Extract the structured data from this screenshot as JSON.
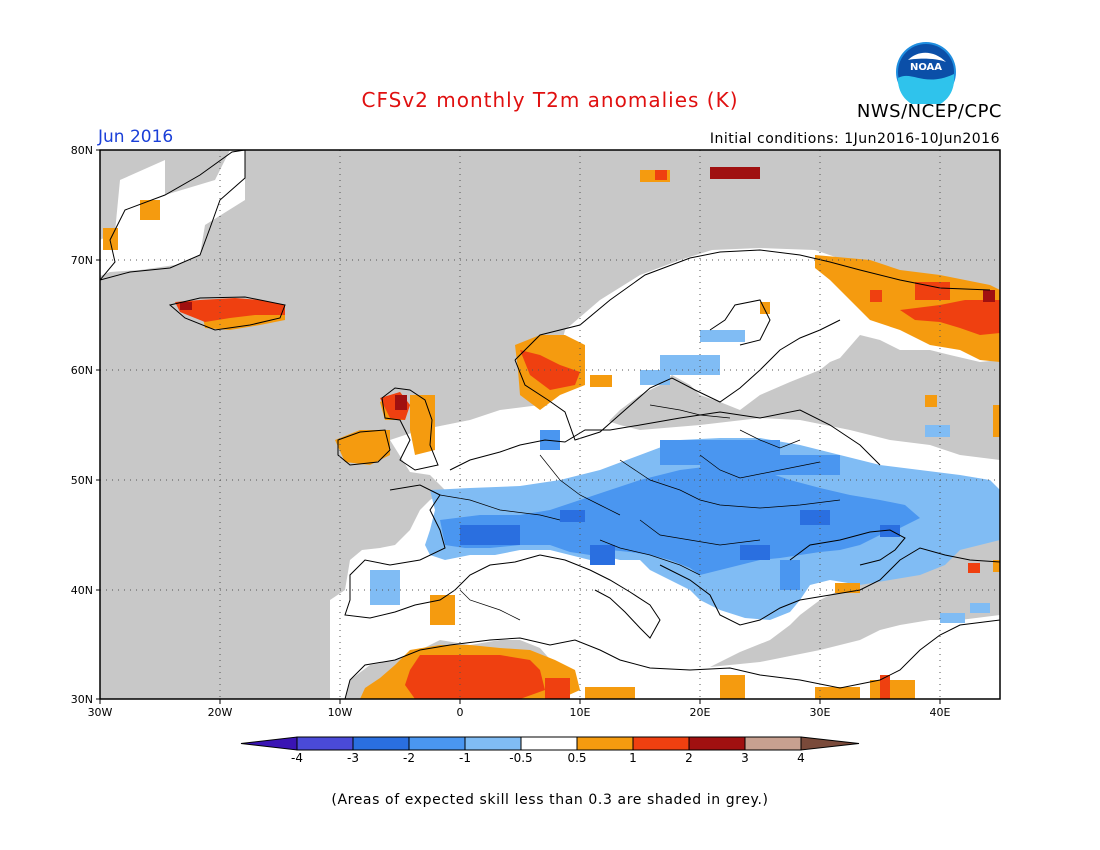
{
  "header": {
    "title": "CFSv2 monthly T2m anomalies (K)",
    "agency": "NWS/NCEP/CPC",
    "period": "Jun 2016",
    "initial_conditions": "Initial conditions: 1Jun2016-10Jun2016",
    "logo_icon": "noaa-logo-icon",
    "logo_text": "NOAA"
  },
  "map": {
    "region": "Europe",
    "lon_range": [
      -30,
      45
    ],
    "lat_range": [
      30,
      80
    ],
    "lat_ticks": [
      "80N",
      "70N",
      "60N",
      "50N",
      "40N",
      "30N"
    ],
    "lon_ticks": [
      "30W",
      "20W",
      "10W",
      "0",
      "10E",
      "20E",
      "30E",
      "40E"
    ],
    "grid": "dotted",
    "low_skill_color": "#c8c8c8"
  },
  "colorbar": {
    "labels": [
      "-4",
      "-3",
      "-2",
      "-1",
      "-0.5",
      "0.5",
      "1",
      "2",
      "3",
      "4"
    ],
    "colors": [
      "#3a14b4",
      "#4a4ad8",
      "#2a6fe0",
      "#4a96f0",
      "#80bcf4",
      "#ffffff",
      "#f59b0f",
      "#ef4010",
      "#a01010",
      "#c8a090",
      "#7a4a3a"
    ]
  },
  "footer": {
    "note": "(Areas of expected skill less than 0.3 are shaded in grey.)"
  }
}
